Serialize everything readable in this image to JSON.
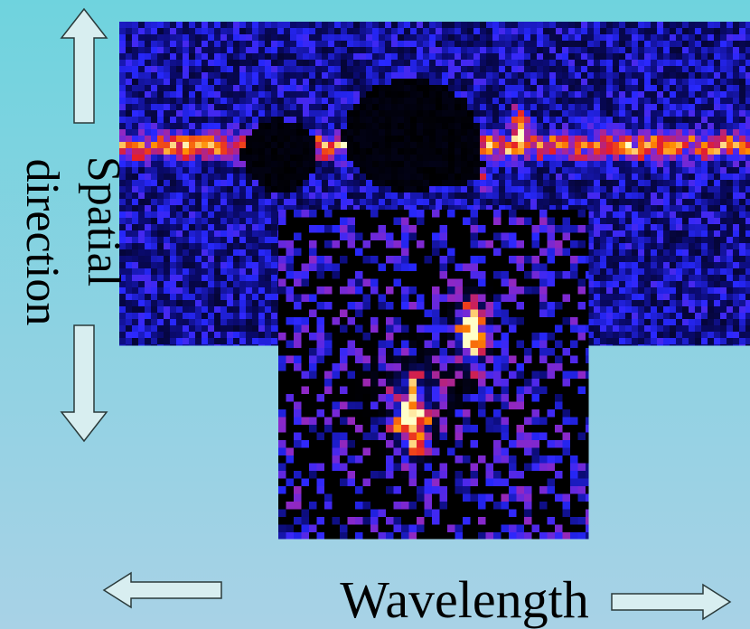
{
  "slide": {
    "vertical_label": {
      "line1": "Spatial",
      "line2": "direction"
    },
    "horizontal_label": "Wavelength"
  }
}
